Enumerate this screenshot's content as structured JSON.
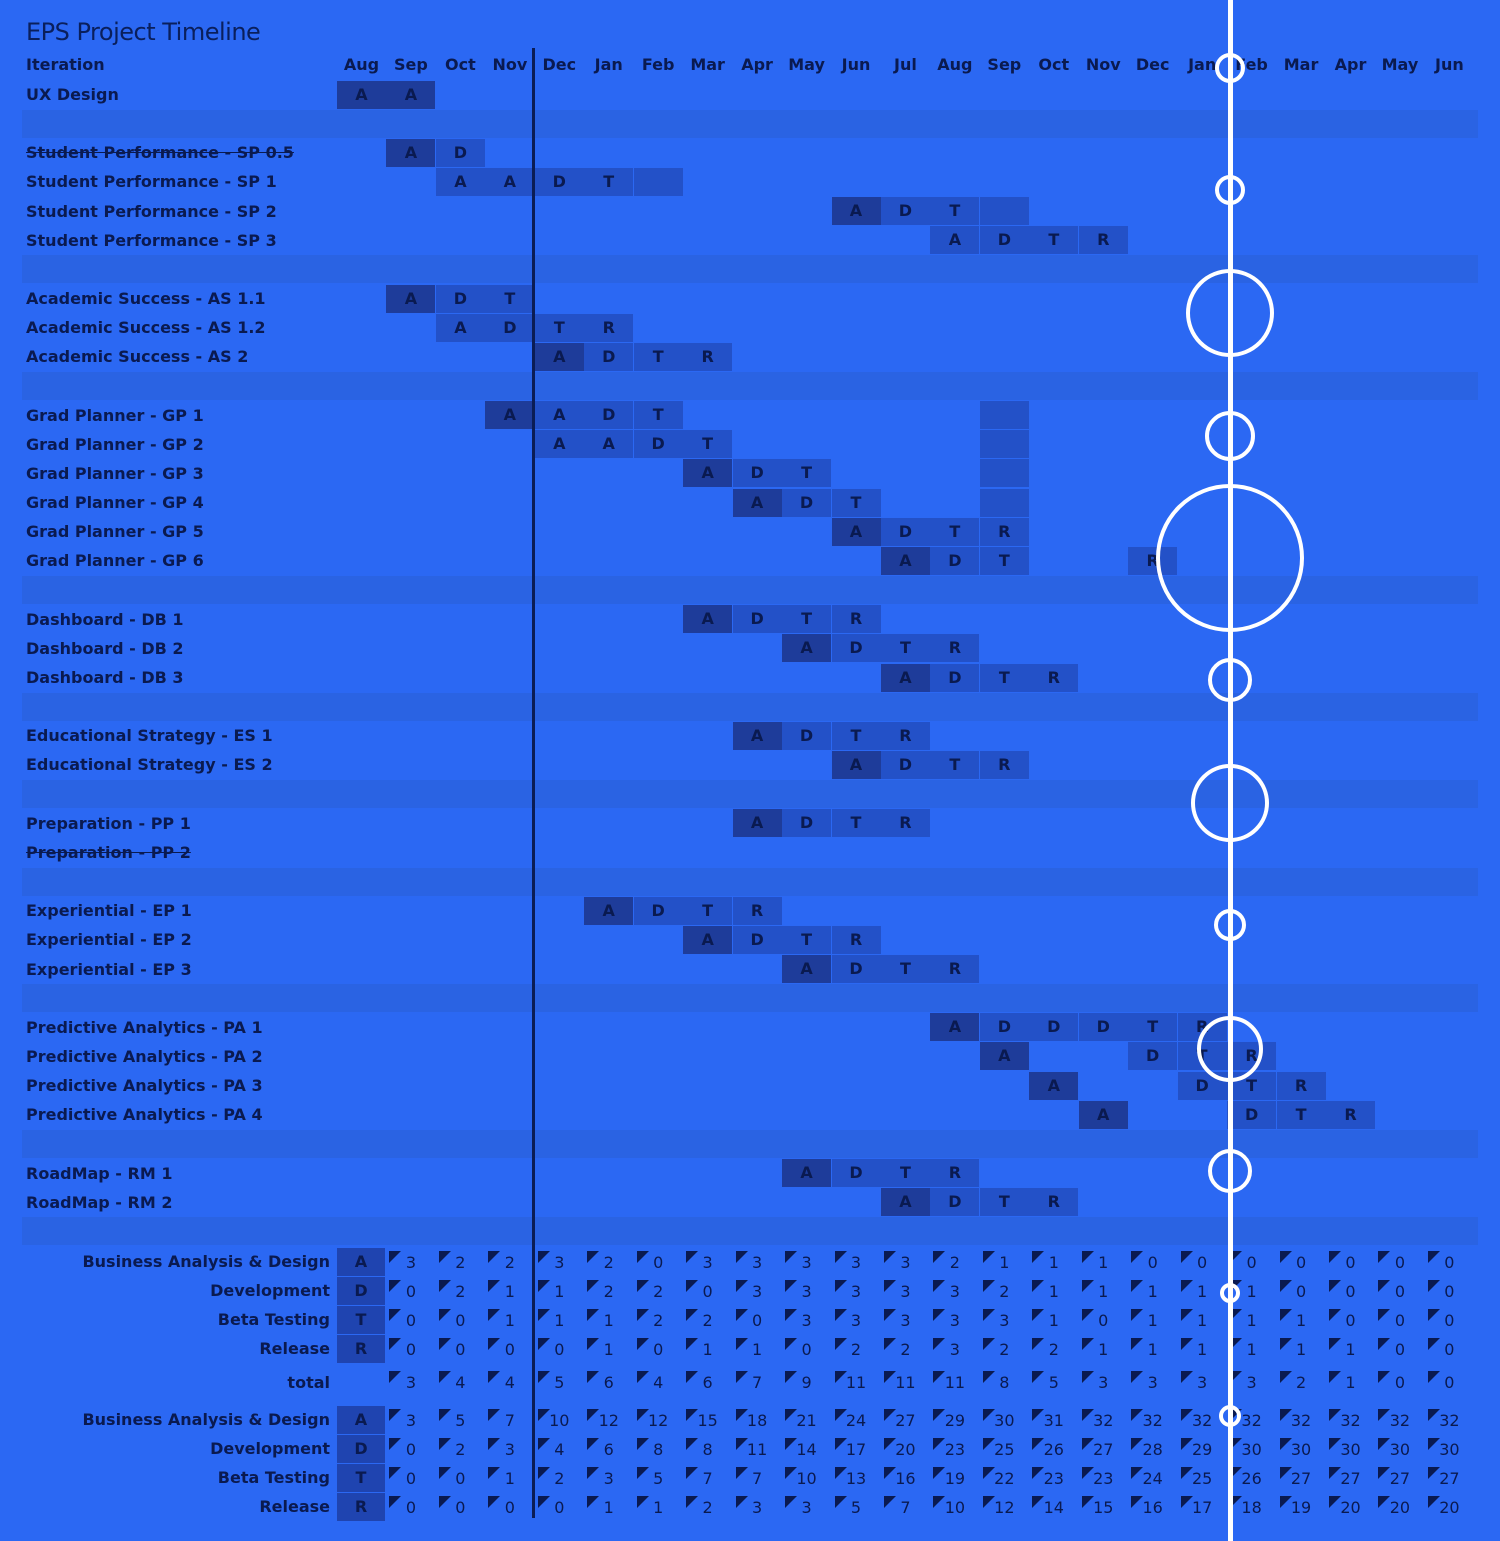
{
  "title": "EPS Project Timeline",
  "iteration_header": "Iteration",
  "months": [
    "Aug",
    "Sep",
    "Oct",
    "Nov",
    "Dec",
    "Jan",
    "Feb",
    "Mar",
    "Apr",
    "May",
    "Jun",
    "Jul",
    "Aug",
    "Sep",
    "Oct",
    "Nov",
    "Dec",
    "Jan",
    "Feb",
    "Mar",
    "Apr",
    "May",
    "Jun"
  ],
  "rows": [
    {
      "label": "UX Design",
      "strike": false,
      "cells": [
        [
          0,
          "A",
          1
        ],
        [
          1,
          "A",
          1
        ]
      ]
    },
    null,
    {
      "label": "Student Performance - SP 0.5",
      "strike": true,
      "cells": [
        [
          1,
          "A",
          1
        ],
        [
          2,
          "D",
          2
        ]
      ]
    },
    {
      "label": "Student Performance - SP 1",
      "strike": false,
      "cells": [
        [
          2,
          "A",
          2
        ],
        [
          3,
          "A",
          2
        ],
        [
          4,
          "D",
          2
        ],
        [
          5,
          "T",
          2
        ],
        [
          6,
          "",
          2
        ]
      ]
    },
    {
      "label": "Student Performance - SP 2",
      "strike": false,
      "cells": [
        [
          10,
          "A",
          1
        ],
        [
          11,
          "D",
          2
        ],
        [
          12,
          "T",
          2
        ],
        [
          13,
          "",
          2
        ]
      ]
    },
    {
      "label": "Student Performance - SP 3",
      "strike": false,
      "cells": [
        [
          12,
          "A",
          2
        ],
        [
          13,
          "D",
          2
        ],
        [
          14,
          "T",
          2
        ],
        [
          15,
          "R",
          2
        ]
      ]
    },
    null,
    {
      "label": "Academic Success - AS 1.1",
      "strike": false,
      "cells": [
        [
          1,
          "A",
          1
        ],
        [
          2,
          "D",
          2
        ],
        [
          3,
          "T",
          2
        ]
      ]
    },
    {
      "label": "Academic Success - AS 1.2",
      "strike": false,
      "cells": [
        [
          2,
          "A",
          2
        ],
        [
          3,
          "D",
          2
        ],
        [
          4,
          "T",
          2
        ],
        [
          5,
          "R",
          2
        ]
      ]
    },
    {
      "label": "Academic Success - AS 2",
      "strike": false,
      "cells": [
        [
          4,
          "A",
          1
        ],
        [
          5,
          "D",
          2
        ],
        [
          6,
          "T",
          2
        ],
        [
          7,
          "R",
          2
        ]
      ]
    },
    null,
    {
      "label": "Grad Planner - GP 1",
      "strike": false,
      "cells": [
        [
          3,
          "A",
          1
        ],
        [
          4,
          "A",
          2
        ],
        [
          5,
          "D",
          2
        ],
        [
          6,
          "T",
          2
        ],
        [
          13,
          "",
          2
        ]
      ]
    },
    {
      "label": "Grad Planner - GP 2",
      "strike": false,
      "cells": [
        [
          4,
          "A",
          2
        ],
        [
          5,
          "A",
          2
        ],
        [
          6,
          "D",
          2
        ],
        [
          7,
          "T",
          2
        ],
        [
          13,
          "",
          2
        ]
      ]
    },
    {
      "label": "Grad Planner - GP 3",
      "strike": false,
      "cells": [
        [
          7,
          "A",
          1
        ],
        [
          8,
          "D",
          2
        ],
        [
          9,
          "T",
          2
        ],
        [
          13,
          "",
          2
        ]
      ]
    },
    {
      "label": "Grad Planner - GP 4",
      "strike": false,
      "cells": [
        [
          8,
          "A",
          1
        ],
        [
          9,
          "D",
          2
        ],
        [
          10,
          "T",
          2
        ],
        [
          13,
          "",
          2
        ]
      ]
    },
    {
      "label": "Grad Planner - GP 5",
      "strike": false,
      "cells": [
        [
          10,
          "A",
          1
        ],
        [
          11,
          "D",
          2
        ],
        [
          12,
          "T",
          2
        ],
        [
          13,
          "R",
          2
        ]
      ]
    },
    {
      "label": "Grad Planner - GP 6",
      "strike": false,
      "cells": [
        [
          11,
          "A",
          1
        ],
        [
          12,
          "D",
          2
        ],
        [
          13,
          "T",
          2
        ],
        [
          16,
          "R",
          2
        ]
      ]
    },
    null,
    {
      "label": "Dashboard  - DB 1",
      "strike": false,
      "cells": [
        [
          7,
          "A",
          1
        ],
        [
          8,
          "D",
          2
        ],
        [
          9,
          "T",
          2
        ],
        [
          10,
          "R",
          2
        ]
      ]
    },
    {
      "label": "Dashboard  - DB 2",
      "strike": false,
      "cells": [
        [
          9,
          "A",
          1
        ],
        [
          10,
          "D",
          2
        ],
        [
          11,
          "T",
          2
        ],
        [
          12,
          "R",
          2
        ]
      ]
    },
    {
      "label": "Dashboard  - DB 3",
      "strike": false,
      "cells": [
        [
          11,
          "A",
          1
        ],
        [
          12,
          "D",
          2
        ],
        [
          13,
          "T",
          2
        ],
        [
          14,
          "R",
          2
        ]
      ]
    },
    null,
    {
      "label": "Educational Strategy - ES 1",
      "strike": false,
      "cells": [
        [
          8,
          "A",
          1
        ],
        [
          9,
          "D",
          2
        ],
        [
          10,
          "T",
          2
        ],
        [
          11,
          "R",
          2
        ]
      ]
    },
    {
      "label": "Educational Strategy - ES 2",
      "strike": false,
      "cells": [
        [
          10,
          "A",
          1
        ],
        [
          11,
          "D",
          2
        ],
        [
          12,
          "T",
          2
        ],
        [
          13,
          "R",
          2
        ]
      ]
    },
    null,
    {
      "label": "Preparation - PP 1",
      "strike": false,
      "cells": [
        [
          8,
          "A",
          1
        ],
        [
          9,
          "D",
          2
        ],
        [
          10,
          "T",
          2
        ],
        [
          11,
          "R",
          2
        ]
      ]
    },
    {
      "label": "Preparation - PP 2",
      "strike": true,
      "cells": []
    },
    null,
    {
      "label": "Experiential - EP 1",
      "strike": false,
      "cells": [
        [
          5,
          "A",
          1
        ],
        [
          6,
          "D",
          2
        ],
        [
          7,
          "T",
          2
        ],
        [
          8,
          "R",
          2
        ]
      ]
    },
    {
      "label": "Experiential - EP 2",
      "strike": false,
      "cells": [
        [
          7,
          "A",
          1
        ],
        [
          8,
          "D",
          2
        ],
        [
          9,
          "T",
          2
        ],
        [
          10,
          "R",
          2
        ]
      ]
    },
    {
      "label": "Experiential - EP 3",
      "strike": false,
      "cells": [
        [
          9,
          "A",
          1
        ],
        [
          10,
          "D",
          2
        ],
        [
          11,
          "T",
          2
        ],
        [
          12,
          "R",
          2
        ]
      ]
    },
    null,
    {
      "label": "Predictive Analytics - PA 1",
      "strike": false,
      "cells": [
        [
          12,
          "A",
          1
        ],
        [
          13,
          "D",
          2
        ],
        [
          14,
          "D",
          2
        ],
        [
          15,
          "D",
          2
        ],
        [
          16,
          "T",
          2
        ],
        [
          17,
          "R",
          2
        ]
      ]
    },
    {
      "label": "Predictive Analytics - PA 2",
      "strike": false,
      "cells": [
        [
          13,
          "A",
          1
        ],
        [
          16,
          "D",
          2
        ],
        [
          17,
          "T",
          2
        ],
        [
          18,
          "R",
          2
        ]
      ]
    },
    {
      "label": "Predictive Analytics - PA 3",
      "strike": false,
      "cells": [
        [
          14,
          "A",
          1
        ],
        [
          17,
          "D",
          2
        ],
        [
          18,
          "T",
          2
        ],
        [
          19,
          "R",
          2
        ]
      ]
    },
    {
      "label": "Predictive Analytics - PA 4",
      "strike": false,
      "cells": [
        [
          15,
          "A",
          1
        ],
        [
          18,
          "D",
          2
        ],
        [
          19,
          "T",
          2
        ],
        [
          20,
          "R",
          2
        ]
      ]
    },
    null,
    {
      "label": "RoadMap - RM 1",
      "strike": false,
      "cells": [
        [
          9,
          "A",
          1
        ],
        [
          10,
          "D",
          2
        ],
        [
          11,
          "T",
          2
        ],
        [
          12,
          "R",
          2
        ]
      ]
    },
    {
      "label": "RoadMap - RM 2",
      "strike": false,
      "cells": [
        [
          11,
          "A",
          1
        ],
        [
          12,
          "D",
          2
        ],
        [
          13,
          "T",
          2
        ],
        [
          14,
          "R",
          2
        ]
      ]
    },
    null
  ],
  "summary_monthly": {
    "labels": [
      "Business Analysis & Design",
      "Development",
      "Beta Testing",
      "Release"
    ],
    "letters": [
      "A",
      "D",
      "T",
      "R"
    ],
    "values": [
      [
        3,
        2,
        2,
        3,
        2,
        0,
        3,
        3,
        3,
        3,
        3,
        2,
        1,
        1,
        1,
        0,
        0,
        0,
        0,
        0,
        0,
        0
      ],
      [
        0,
        2,
        1,
        1,
        2,
        2,
        0,
        3,
        3,
        3,
        3,
        3,
        2,
        1,
        1,
        1,
        1,
        1,
        0,
        0,
        0,
        0
      ],
      [
        0,
        0,
        1,
        1,
        1,
        2,
        2,
        0,
        3,
        3,
        3,
        3,
        3,
        1,
        0,
        1,
        1,
        1,
        1,
        0,
        0,
        0
      ],
      [
        0,
        0,
        0,
        0,
        1,
        0,
        1,
        1,
        0,
        2,
        2,
        3,
        2,
        2,
        1,
        1,
        1,
        1,
        1,
        1,
        0,
        0
      ]
    ],
    "total_label": "total",
    "totals": [
      3,
      4,
      4,
      5,
      6,
      4,
      6,
      7,
      9,
      11,
      11,
      11,
      8,
      5,
      3,
      3,
      3,
      3,
      2,
      1,
      0,
      0
    ]
  },
  "summary_cumulative": {
    "labels": [
      "Business Analysis & Design",
      "Development",
      "Beta Testing",
      "Release"
    ],
    "letters": [
      "A",
      "D",
      "T",
      "R"
    ],
    "values": [
      [
        3,
        5,
        7,
        10,
        12,
        12,
        15,
        18,
        21,
        24,
        27,
        29,
        30,
        31,
        32,
        32,
        32,
        32,
        32,
        32,
        32,
        32
      ],
      [
        0,
        2,
        3,
        4,
        6,
        8,
        8,
        11,
        14,
        17,
        20,
        23,
        25,
        26,
        27,
        28,
        29,
        30,
        30,
        30,
        30,
        30
      ],
      [
        0,
        0,
        1,
        2,
        3,
        5,
        7,
        7,
        10,
        13,
        16,
        19,
        22,
        23,
        23,
        24,
        25,
        26,
        27,
        27,
        27,
        27
      ],
      [
        0,
        0,
        0,
        0,
        1,
        1,
        2,
        3,
        3,
        5,
        7,
        10,
        12,
        14,
        15,
        16,
        17,
        18,
        19,
        20,
        20,
        20
      ]
    ]
  },
  "colors": {
    "background": "#2b68f3",
    "band": "#2a63e3",
    "dark_cell": "#1e3c9a",
    "mid_cell": "#2351c8",
    "overlay": "#ffffff"
  }
}
